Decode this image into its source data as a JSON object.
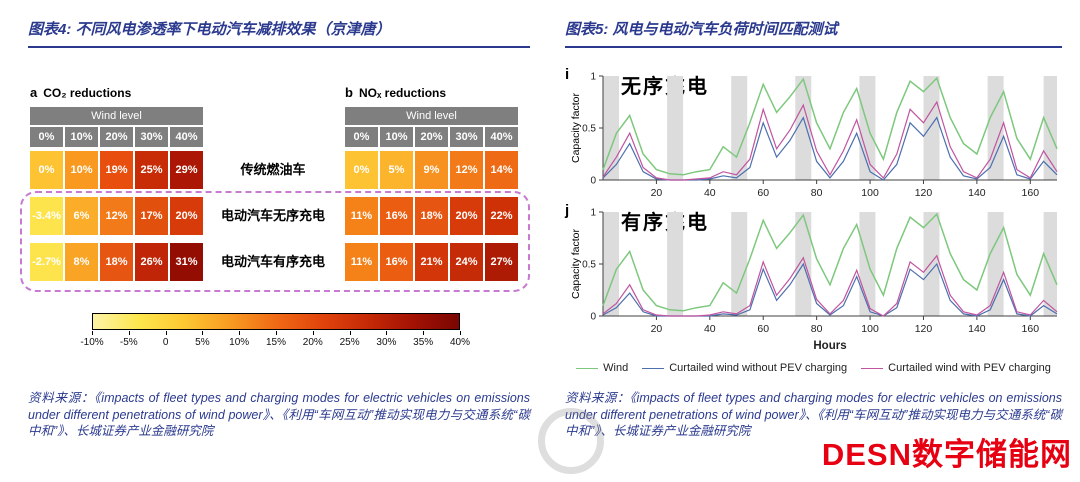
{
  "left_figure": {
    "title": "图表4: 不同风电渗透率下电动汽车减排效果（京津唐）",
    "source": "资料来源：《impacts of fleet types and charging modes  for electric vehicles on emissions under different  penetrations of wind power》、《利用“车网互动”推动实现电力与交通系统“碳中和”》、长城证券产业金融研究院"
  },
  "right_figure": {
    "title": "图表5: 风电与电动汽车负荷时间匹配测试",
    "source": "资料来源：《impacts of fleet types and charging modes  for electric vehicles on emissions under different  penetrations of wind power》、《利用“车网互动”推动实现电力与交通系统“碳中和”》、长城证券产业金融研究院"
  },
  "watermark": {
    "text": "DESN数字储能网",
    "color": "#e60012"
  },
  "chart_data": [
    {
      "type": "heatmap",
      "title": "不同风电渗透率下电动汽车减排效果（京津唐）",
      "row_labels": [
        "传统燃油车",
        "电动汽车无序充电",
        "电动汽车有序充电"
      ],
      "panels": [
        {
          "label": "a",
          "title": "CO₂ reductions",
          "header": "Wind level",
          "columns": [
            "0%",
            "10%",
            "20%",
            "30%",
            "40%"
          ],
          "rows": [
            {
              "values": [
                "0%",
                "10%",
                "19%",
                "25%",
                "29%"
              ],
              "colors": [
                "#fdc332",
                "#f9991f",
                "#e84e0e",
                "#c72c07",
                "#ab1704"
              ]
            },
            {
              "values": [
                "-3.4%",
                "6%",
                "12%",
                "17%",
                "20%"
              ],
              "colors": [
                "#fde44d",
                "#fbad29",
                "#f37a18",
                "#e2500d",
                "#d63b09"
              ]
            },
            {
              "values": [
                "-2.7%",
                "8%",
                "18%",
                "26%",
                "31%"
              ],
              "colors": [
                "#fde44d",
                "#faa425",
                "#e65511",
                "#bf2506",
                "#940d03"
              ]
            }
          ]
        },
        {
          "label": "b",
          "title": "NOₓ reductions",
          "header": "Wind level",
          "columns": [
            "0%",
            "10%",
            "20%",
            "30%",
            "40%"
          ],
          "rows": [
            {
              "values": [
                "0%",
                "5%",
                "9%",
                "12%",
                "14%"
              ],
              "colors": [
                "#fdc332",
                "#fcb42c",
                "#f79220",
                "#f37a18",
                "#ef6a14"
              ]
            },
            {
              "values": [
                "11%",
                "16%",
                "18%",
                "20%",
                "22%"
              ],
              "colors": [
                "#f58119",
                "#eb5d11",
                "#e65511",
                "#d63b09",
                "#cf3107"
              ]
            },
            {
              "values": [
                "11%",
                "16%",
                "21%",
                "24%",
                "27%"
              ],
              "colors": [
                "#f58119",
                "#eb5d11",
                "#d33609",
                "#c62b07",
                "#ae1b04"
              ]
            }
          ]
        }
      ],
      "colorbar": {
        "ticks": [
          "-10%",
          "-5%",
          "0",
          "5%",
          "10%",
          "15%",
          "20%",
          "25%",
          "30%",
          "35%",
          "40%"
        ],
        "gradient": [
          "#fcf3a6",
          "#fde74e",
          "#fdc832",
          "#f89b22",
          "#f06a15",
          "#e1440c",
          "#c62a07",
          "#a31204",
          "#7a0603"
        ]
      }
    },
    {
      "type": "line",
      "title": "风电与电动汽车负荷时间匹配测试",
      "xlabel": "Hours",
      "ylabel": "Capacity factor",
      "xlim": [
        0,
        170
      ],
      "ylim": [
        0,
        1
      ],
      "xticks": [
        20,
        40,
        60,
        80,
        100,
        120,
        140,
        160
      ],
      "yticks": [
        0,
        0.5,
        1
      ],
      "shaded_bands_x": [
        [
          0,
          6
        ],
        [
          24,
          30
        ],
        [
          48,
          54
        ],
        [
          72,
          78
        ],
        [
          96,
          102
        ],
        [
          120,
          126
        ],
        [
          144,
          150
        ],
        [
          165,
          170
        ]
      ],
      "band_color": "#dcdcdc",
      "x": [
        0,
        5,
        10,
        15,
        20,
        25,
        30,
        35,
        40,
        45,
        50,
        55,
        60,
        65,
        70,
        75,
        80,
        85,
        90,
        95,
        100,
        105,
        110,
        115,
        120,
        125,
        130,
        135,
        140,
        145,
        150,
        155,
        160,
        165,
        170
      ],
      "panels": [
        {
          "id": "i",
          "title": "无序充电",
          "series": [
            {
              "name": "Wind",
              "color": "#7dc87d",
              "values": [
                0.1,
                0.45,
                0.62,
                0.25,
                0.1,
                0.06,
                0.05,
                0.08,
                0.1,
                0.32,
                0.22,
                0.55,
                0.92,
                0.65,
                0.8,
                0.97,
                0.55,
                0.3,
                0.65,
                0.88,
                0.45,
                0.2,
                0.65,
                0.95,
                0.85,
                0.98,
                0.6,
                0.35,
                0.25,
                0.6,
                0.85,
                0.4,
                0.2,
                0.6,
                0.3
              ]
            },
            {
              "name": "Curtailed wind without PEV charging",
              "color": "#4c6faf",
              "values": [
                0.02,
                0.15,
                0.35,
                0.08,
                0.01,
                0.0,
                0.0,
                0.0,
                0.01,
                0.04,
                0.02,
                0.12,
                0.55,
                0.22,
                0.38,
                0.6,
                0.18,
                0.02,
                0.18,
                0.45,
                0.08,
                0.0,
                0.15,
                0.55,
                0.42,
                0.6,
                0.22,
                0.04,
                0.01,
                0.12,
                0.42,
                0.05,
                0.01,
                0.18,
                0.05
              ]
            },
            {
              "name": "Curtailed wind with PEV charging",
              "color": "#c0549f",
              "values": [
                0.03,
                0.22,
                0.45,
                0.12,
                0.02,
                0.0,
                0.0,
                0.01,
                0.02,
                0.08,
                0.05,
                0.2,
                0.68,
                0.3,
                0.48,
                0.72,
                0.28,
                0.05,
                0.28,
                0.58,
                0.15,
                0.02,
                0.25,
                0.68,
                0.55,
                0.75,
                0.32,
                0.08,
                0.02,
                0.2,
                0.55,
                0.1,
                0.02,
                0.28,
                0.08
              ]
            }
          ]
        },
        {
          "id": "j",
          "title": "有序充电",
          "series": [
            {
              "name": "Wind",
              "color": "#7dc87d",
              "values": [
                0.1,
                0.45,
                0.62,
                0.25,
                0.1,
                0.06,
                0.05,
                0.08,
                0.1,
                0.32,
                0.22,
                0.55,
                0.92,
                0.65,
                0.8,
                0.97,
                0.55,
                0.3,
                0.65,
                0.88,
                0.45,
                0.2,
                0.65,
                0.95,
                0.85,
                0.98,
                0.6,
                0.35,
                0.25,
                0.6,
                0.85,
                0.4,
                0.2,
                0.6,
                0.3
              ]
            },
            {
              "name": "Curtailed wind without PEV charging",
              "color": "#4c6faf",
              "values": [
                0.01,
                0.08,
                0.22,
                0.04,
                0.0,
                0.0,
                0.0,
                0.0,
                0.0,
                0.02,
                0.01,
                0.06,
                0.45,
                0.15,
                0.3,
                0.5,
                0.12,
                0.01,
                0.1,
                0.38,
                0.04,
                0.0,
                0.08,
                0.45,
                0.35,
                0.5,
                0.15,
                0.02,
                0.0,
                0.06,
                0.35,
                0.02,
                0.0,
                0.1,
                0.02
              ]
            },
            {
              "name": "Curtailed wind with PEV charging",
              "color": "#c0549f",
              "values": [
                0.02,
                0.12,
                0.3,
                0.06,
                0.01,
                0.0,
                0.0,
                0.0,
                0.01,
                0.04,
                0.02,
                0.1,
                0.52,
                0.2,
                0.36,
                0.56,
                0.16,
                0.02,
                0.15,
                0.44,
                0.07,
                0.0,
                0.12,
                0.52,
                0.42,
                0.58,
                0.2,
                0.04,
                0.01,
                0.1,
                0.42,
                0.04,
                0.01,
                0.15,
                0.04
              ]
            }
          ]
        }
      ],
      "legend": [
        {
          "label": "Wind",
          "color": "#7dc87d"
        },
        {
          "label": "Curtailed wind without PEV charging",
          "color": "#4c6faf"
        },
        {
          "label": "Curtailed wind with PEV charging",
          "color": "#c0549f"
        }
      ]
    }
  ]
}
